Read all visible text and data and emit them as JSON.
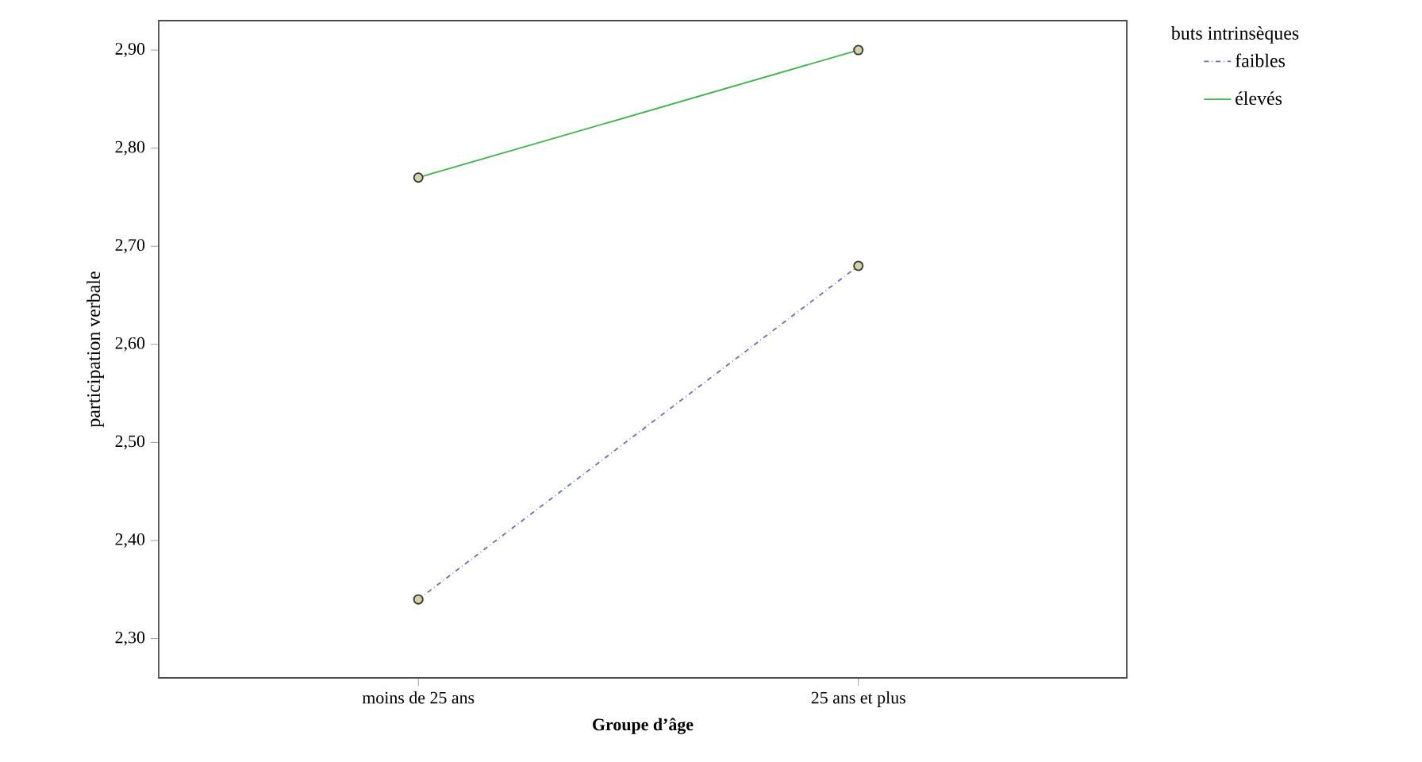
{
  "chart_data": {
    "type": "line",
    "xlabel": "Groupe d’âge",
    "ylabel": "participation verbale",
    "legend_title": "buts intrinsèques",
    "categories": [
      "moins de 25 ans",
      "25 ans et plus"
    ],
    "series": [
      {
        "name": "faibles",
        "color": "#6b6bc4",
        "values": [
          2.34,
          2.68
        ],
        "line_style": "dashdot"
      },
      {
        "name": "élevés",
        "color": "#3cb44b",
        "values": [
          2.77,
          2.9
        ],
        "line_style": "solid"
      }
    ],
    "marker": "circle",
    "legend": "top right",
    "grid": false,
    "ylim": [
      2.26,
      2.93
    ],
    "yticks": [
      {
        "value": 2.3,
        "label": "2,30"
      },
      {
        "value": 2.4,
        "label": "2,40"
      },
      {
        "value": 2.5,
        "label": "2,50"
      },
      {
        "value": 2.6,
        "label": "2,60"
      },
      {
        "value": 2.7,
        "label": "2,70"
      },
      {
        "value": 2.8,
        "label": "2,80"
      },
      {
        "value": 2.9,
        "label": "2,90"
      }
    ]
  }
}
